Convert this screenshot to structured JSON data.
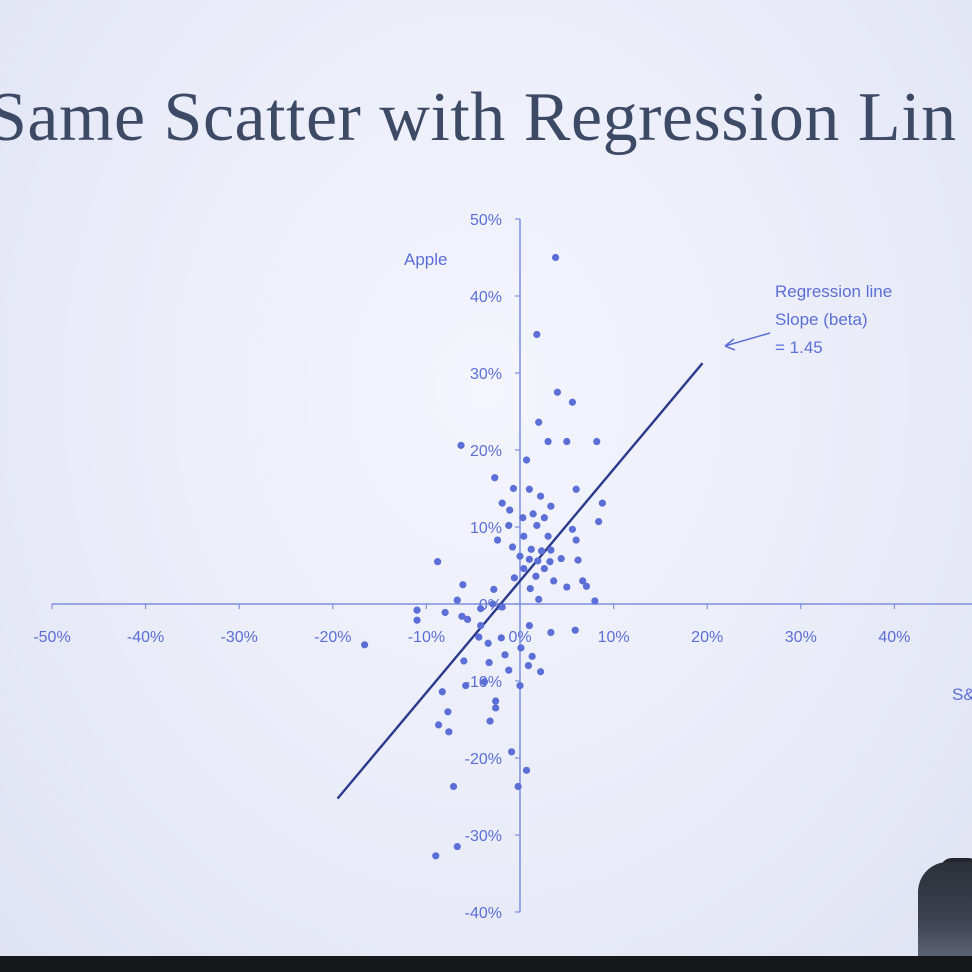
{
  "slide": {
    "title": "Same Scatter with Regression Lin"
  },
  "colors": {
    "points": "#5b6fd6",
    "axis": "#7c8fe0",
    "regression_line": "#2b3a8c",
    "title": "#3d4a66"
  },
  "chart_data": {
    "type": "scatter",
    "title": "Same Scatter with Regression Lin",
    "xlabel": "S&",
    "ylabel": "Apple",
    "xlim": [
      -50,
      50
    ],
    "ylim": [
      -40,
      50
    ],
    "x_ticks": [
      "-50%",
      "-40%",
      "-30%",
      "-20%",
      "-10%",
      "0%",
      "10%",
      "20%",
      "30%",
      "40%"
    ],
    "y_ticks": [
      "-40%",
      "-30%",
      "-20%",
      "-10%",
      "0%",
      "10%",
      "20%",
      "30%",
      "40%",
      "50%"
    ],
    "x_tick_values": [
      -50,
      -40,
      -30,
      -20,
      -10,
      0,
      10,
      20,
      30,
      40
    ],
    "y_tick_values": [
      -40,
      -30,
      -20,
      -10,
      0,
      10,
      20,
      30,
      40,
      50
    ],
    "grid": false,
    "series": [
      {
        "points": [
          [
            3.8,
            45
          ],
          [
            1.8,
            35
          ],
          [
            4.0,
            27.5
          ],
          [
            5.6,
            26.2
          ],
          [
            2.0,
            23.6
          ],
          [
            -6.3,
            20.6
          ],
          [
            3.0,
            21.1
          ],
          [
            5.0,
            21.1
          ],
          [
            8.2,
            21.1
          ],
          [
            0.7,
            18.7
          ],
          [
            -2.7,
            16.4
          ],
          [
            -0.7,
            15.0
          ],
          [
            1.0,
            14.9
          ],
          [
            6.0,
            14.9
          ],
          [
            2.2,
            14.0
          ],
          [
            -1.9,
            13.1
          ],
          [
            3.3,
            12.7
          ],
          [
            8.8,
            13.1
          ],
          [
            -1.1,
            12.2
          ],
          [
            1.4,
            11.7
          ],
          [
            0.3,
            11.2
          ],
          [
            2.6,
            11.2
          ],
          [
            8.4,
            10.7
          ],
          [
            -1.2,
            10.2
          ],
          [
            1.8,
            10.2
          ],
          [
            5.6,
            9.7
          ],
          [
            -2.4,
            8.3
          ],
          [
            0.4,
            8.8
          ],
          [
            3.0,
            8.8
          ],
          [
            6.0,
            8.3
          ],
          [
            -0.8,
            7.4
          ],
          [
            1.2,
            7.1
          ],
          [
            2.3,
            6.9
          ],
          [
            3.3,
            7.0
          ],
          [
            -8.8,
            5.5
          ],
          [
            0.0,
            6.2
          ],
          [
            1.0,
            5.8
          ],
          [
            1.9,
            5.6
          ],
          [
            3.2,
            5.5
          ],
          [
            4.4,
            5.9
          ],
          [
            6.2,
            5.7
          ],
          [
            0.4,
            4.6
          ],
          [
            2.6,
            4.6
          ],
          [
            1.7,
            3.6
          ],
          [
            -6.1,
            2.5
          ],
          [
            -0.6,
            3.4
          ],
          [
            3.6,
            3.0
          ],
          [
            6.7,
            3.0
          ],
          [
            -2.8,
            1.9
          ],
          [
            1.1,
            2.0
          ],
          [
            5.0,
            2.2
          ],
          [
            7.1,
            2.3
          ],
          [
            -6.7,
            0.5
          ],
          [
            2.0,
            0.6
          ],
          [
            8.0,
            0.4
          ],
          [
            -4.2,
            -0.6
          ],
          [
            -1.9,
            -0.4
          ],
          [
            -2.9,
            0.0
          ],
          [
            -11.0,
            -0.8
          ],
          [
            -8.0,
            -1.1
          ],
          [
            -6.2,
            -1.6
          ],
          [
            -5.6,
            -2.0
          ],
          [
            -11.0,
            -2.1
          ],
          [
            -4.2,
            -2.8
          ],
          [
            1.0,
            -2.8
          ],
          [
            5.9,
            -3.4
          ],
          [
            3.3,
            -3.7
          ],
          [
            -4.4,
            -4.3
          ],
          [
            -2.0,
            -4.4
          ],
          [
            -16.6,
            -5.3
          ],
          [
            -3.4,
            -5.1
          ],
          [
            0.1,
            -5.7
          ],
          [
            -1.6,
            -6.6
          ],
          [
            1.3,
            -6.8
          ],
          [
            -6.0,
            -7.4
          ],
          [
            -3.3,
            -7.6
          ],
          [
            0.9,
            -8.0
          ],
          [
            -1.2,
            -8.6
          ],
          [
            2.2,
            -8.8
          ],
          [
            -3.8,
            -10.1
          ],
          [
            0.0,
            -10.6
          ],
          [
            -5.8,
            -10.6
          ],
          [
            -8.3,
            -11.4
          ],
          [
            -2.6,
            -12.6
          ],
          [
            -2.6,
            -13.5
          ],
          [
            -7.7,
            -14.0
          ],
          [
            -3.2,
            -15.2
          ],
          [
            -8.7,
            -15.7
          ],
          [
            -7.6,
            -16.6
          ],
          [
            -0.9,
            -19.2
          ],
          [
            0.7,
            -21.6
          ],
          [
            -7.1,
            -23.7
          ],
          [
            -0.2,
            -23.7
          ],
          [
            -6.7,
            -31.5
          ],
          [
            -9.0,
            -32.7
          ]
        ]
      }
    ],
    "regression": {
      "slope": 1.45,
      "intercept": 3.0,
      "x_range": [
        -19.5,
        19.5
      ]
    },
    "annotation": {
      "lines": [
        "Regression line",
        "Slope (beta)",
        "= 1.45"
      ]
    }
  }
}
